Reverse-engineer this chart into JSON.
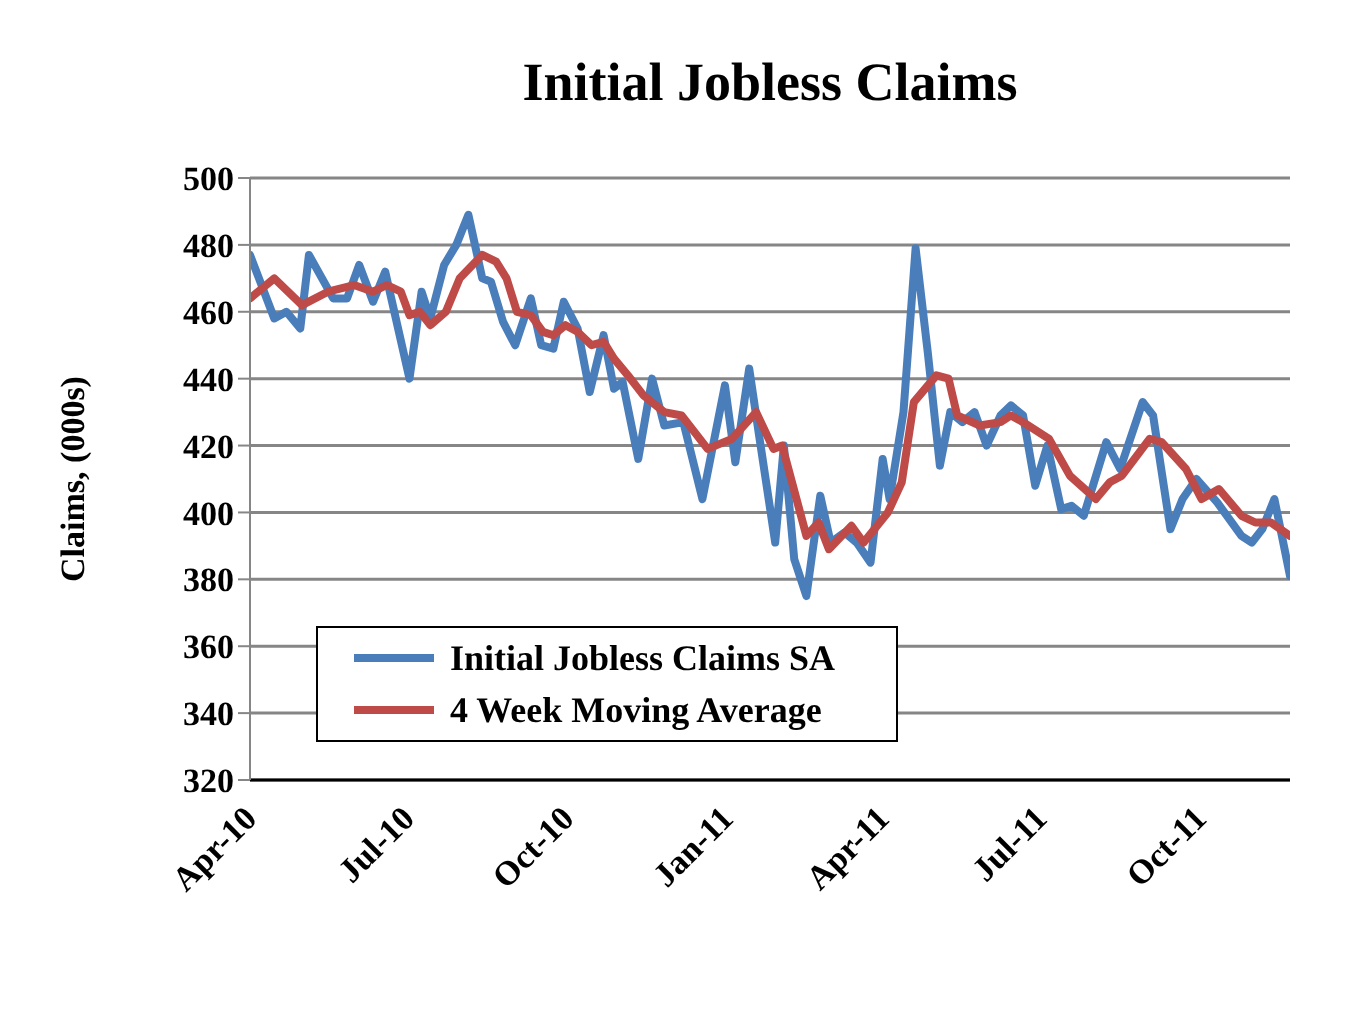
{
  "chart_data": {
    "type": "line",
    "title": "Initial Jobless Claims",
    "ylabel": "Claims, (000s)",
    "xlim": [
      "2010-04-01",
      "2011-11-22"
    ],
    "xticks": [
      {
        "value": "2010-04-01",
        "label": "Apr-10"
      },
      {
        "value": "2010-07-01",
        "label": "Jul-10"
      },
      {
        "value": "2010-10-01",
        "label": "Oct-10"
      },
      {
        "value": "2011-01-01",
        "label": "Jan-11"
      },
      {
        "value": "2011-04-01",
        "label": "Apr-11"
      },
      {
        "value": "2011-07-01",
        "label": "Jul-11"
      },
      {
        "value": "2011-10-01",
        "label": "Oct-11"
      }
    ],
    "ylim": [
      320,
      500
    ],
    "yticks": [
      320,
      340,
      360,
      380,
      400,
      420,
      440,
      460,
      480,
      500
    ],
    "grid": "y",
    "legend": "bottom left",
    "marker": "none",
    "line_style": "solid",
    "series": [
      {
        "name": "Initial Jobless Claims SA",
        "color": "#4a7ebb",
        "x": [
          "2010-04-01",
          "2010-04-15",
          "2010-04-22",
          "2010-04-30",
          "2010-05-05",
          "2010-05-19",
          "2010-05-27",
          "2010-06-03",
          "2010-06-11",
          "2010-06-18",
          "2010-07-02",
          "2010-07-09",
          "2010-07-14",
          "2010-07-22",
          "2010-07-29",
          "2010-08-05",
          "2010-08-13",
          "2010-08-18",
          "2010-08-25",
          "2010-09-01",
          "2010-09-10",
          "2010-09-16",
          "2010-09-23",
          "2010-09-29",
          "2010-10-07",
          "2010-10-14",
          "2010-10-22",
          "2010-10-28",
          "2010-11-02",
          "2010-11-11",
          "2010-11-19",
          "2010-11-26",
          "2010-12-07",
          "2010-12-18",
          "2010-12-31",
          "2011-01-06",
          "2011-01-14",
          "2011-01-20",
          "2011-01-29",
          "2011-02-03",
          "2011-02-09",
          "2011-02-16",
          "2011-02-24",
          "2011-03-02",
          "2011-03-10",
          "2011-03-17",
          "2011-03-25",
          "2011-04-01",
          "2011-04-05",
          "2011-04-13",
          "2011-04-20",
          "2011-04-27",
          "2011-05-04",
          "2011-05-10",
          "2011-05-17",
          "2011-05-24",
          "2011-05-31",
          "2011-06-08",
          "2011-06-14",
          "2011-06-21",
          "2011-06-28",
          "2011-07-05",
          "2011-07-13",
          "2011-07-19",
          "2011-07-26",
          "2011-08-08",
          "2011-08-16",
          "2011-08-29",
          "2011-09-04",
          "2011-09-14",
          "2011-09-21",
          "2011-09-29",
          "2011-10-11",
          "2011-10-25",
          "2011-10-31",
          "2011-11-06",
          "2011-11-13",
          "2011-11-22"
        ],
        "values": [
          477,
          458,
          460,
          455,
          477,
          464,
          464,
          474,
          463,
          472,
          440,
          466,
          458,
          474,
          480,
          489,
          470,
          469,
          457,
          450,
          464,
          450,
          449,
          463,
          455,
          436,
          453,
          437,
          439,
          416,
          440,
          426,
          427,
          404,
          438,
          415,
          443,
          422,
          391,
          420,
          386,
          375,
          405,
          391,
          394,
          391,
          385,
          416,
          404,
          430,
          479,
          448,
          414,
          430,
          427,
          430,
          420,
          429,
          432,
          429,
          408,
          420,
          401,
          402,
          399,
          421,
          413,
          433,
          429,
          395,
          404,
          410,
          403,
          393,
          391,
          395,
          404,
          381
        ]
      },
      {
        "name": "4 Week Moving Average",
        "color": "#be4b48",
        "x": [
          "2010-04-01",
          "2010-04-15",
          "2010-05-01",
          "2010-05-16",
          "2010-05-31",
          "2010-06-11",
          "2010-06-19",
          "2010-06-27",
          "2010-07-02",
          "2010-07-08",
          "2010-07-14",
          "2010-07-23",
          "2010-07-31",
          "2010-08-13",
          "2010-08-21",
          "2010-08-27",
          "2010-09-02",
          "2010-09-10",
          "2010-09-17",
          "2010-09-23",
          "2010-09-30",
          "2010-10-07",
          "2010-10-15",
          "2010-10-22",
          "2010-10-28",
          "2010-11-05",
          "2010-11-14",
          "2010-11-26",
          "2010-12-06",
          "2010-12-21",
          "2011-01-04",
          "2011-01-18",
          "2011-01-28",
          "2011-02-02",
          "2011-02-16",
          "2011-02-23",
          "2011-03-01",
          "2011-03-14",
          "2011-03-21",
          "2011-04-04",
          "2011-04-12",
          "2011-04-19",
          "2011-05-02",
          "2011-05-09",
          "2011-05-14",
          "2011-05-27",
          "2011-06-08",
          "2011-06-14",
          "2011-06-21",
          "2011-07-06",
          "2011-07-18",
          "2011-08-02",
          "2011-08-10",
          "2011-08-17",
          "2011-09-02",
          "2011-09-09",
          "2011-09-23",
          "2011-10-02",
          "2011-10-12",
          "2011-10-25",
          "2011-11-02",
          "2011-11-11",
          "2011-11-22"
        ],
        "values": [
          464,
          470,
          462,
          466,
          468,
          466,
          468,
          466,
          459,
          460,
          456,
          460,
          470,
          477,
          475,
          470,
          460,
          459,
          454,
          453,
          456,
          454,
          450,
          451,
          446,
          441,
          435,
          430,
          429,
          419,
          422,
          430,
          419,
          420,
          393,
          397,
          389,
          396,
          391,
          400,
          409,
          433,
          441,
          440,
          429,
          426,
          427,
          429,
          427,
          422,
          411,
          404,
          409,
          411,
          422,
          421,
          413,
          404,
          407,
          399,
          397,
          397,
          393
        ]
      }
    ]
  }
}
